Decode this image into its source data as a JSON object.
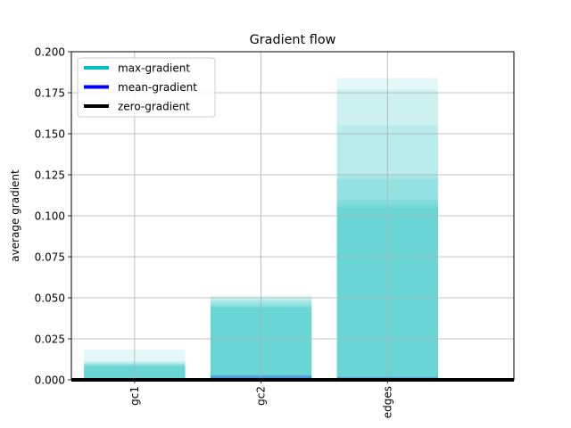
{
  "chart_data": {
    "type": "bar",
    "title": "Gradient flow",
    "xlabel": "",
    "ylabel": "average gradient",
    "categories": [
      "gc1",
      "gc2",
      "edges"
    ],
    "xlim": [
      -0.5,
      3.0
    ],
    "ylim": [
      0.0,
      0.2
    ],
    "yticks": [
      "0.000",
      "0.025",
      "0.050",
      "0.075",
      "0.100",
      "0.125",
      "0.150",
      "0.175",
      "0.200"
    ],
    "ytick_values": [
      0.0,
      0.025,
      0.05,
      0.075,
      0.1,
      0.125,
      0.15,
      0.175,
      0.2
    ],
    "grid": true,
    "legend_position": "top-left",
    "legend": [
      {
        "label": "max-gradient",
        "color": "#00bfbf"
      },
      {
        "label": "mean-gradient",
        "color": "#0000ff"
      },
      {
        "label": "zero-gradient",
        "color": "#000000"
      }
    ],
    "series": [
      {
        "color": "#00bfbf",
        "alpha": 0.1,
        "values": [
          [
            0.0185,
            0.0515,
            0.184
          ],
          [
            0.0115,
            0.0505,
            0.177
          ],
          [
            0.0105,
            0.049,
            0.155
          ],
          [
            0.01,
            0.048,
            0.125
          ],
          [
            0.0095,
            0.047,
            0.122
          ],
          [
            0.009,
            0.0455,
            0.11
          ],
          [
            0.0085,
            0.0445,
            0.107
          ],
          [
            0.008,
            0.044,
            0.105
          ]
        ]
      },
      {
        "color": "#0000ff",
        "alpha": 0.1,
        "values": [
          [
            0.0004,
            0.003,
            0.002
          ],
          [
            0.0003,
            0.0026,
            0.0015
          ],
          [
            0.0002,
            0.0022,
            0.001
          ]
        ]
      }
    ],
    "zero_line": {
      "y": 0.0,
      "color": "#000000"
    }
  }
}
